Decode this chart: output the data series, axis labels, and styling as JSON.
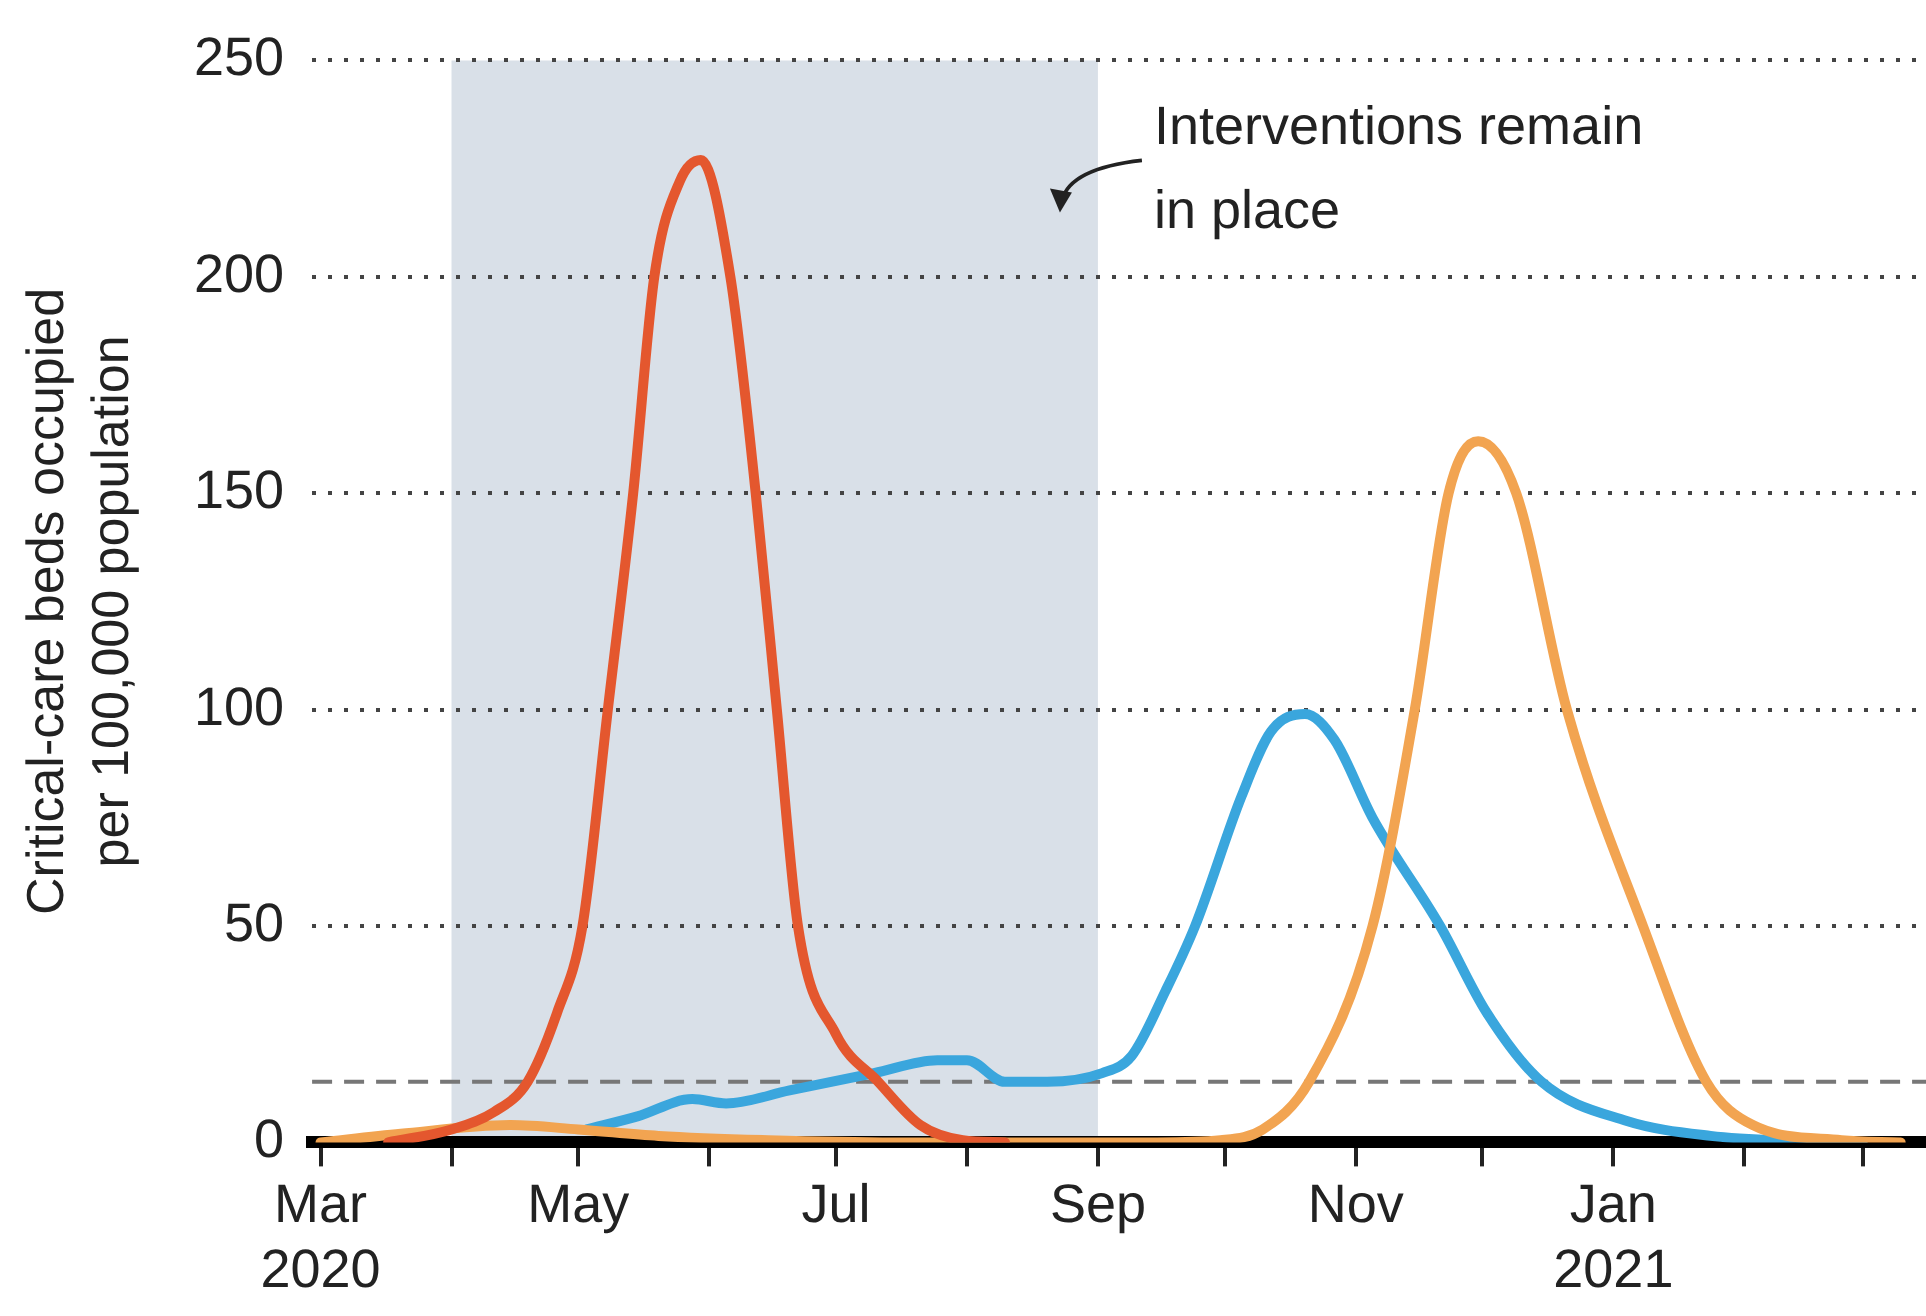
{
  "chart_data": {
    "type": "line",
    "ylabel": "Critical-care beds occupied\nper 100,000 population",
    "xlim": [
      "2020-02-28",
      "2021-03-16"
    ],
    "xticks": [
      {
        "value": "2020-03",
        "label": "Mar\n2020"
      },
      {
        "value": "2020-04",
        "label": null
      },
      {
        "value": "2020-05",
        "label": "May"
      },
      {
        "value": "2020-06",
        "label": null
      },
      {
        "value": "2020-07",
        "label": "Jul"
      },
      {
        "value": "2020-08",
        "label": null
      },
      {
        "value": "2020-09",
        "label": "Sep"
      },
      {
        "value": "2020-10",
        "label": null
      },
      {
        "value": "2020-11",
        "label": "Nov"
      },
      {
        "value": "2020-12",
        "label": null
      },
      {
        "value": "2021-01",
        "label": "Jan\n2021"
      },
      {
        "value": "2021-02",
        "label": null
      },
      {
        "value": "2021-03",
        "label": null
      }
    ],
    "ylim": [
      0,
      250
    ],
    "yticks": [
      0,
      50,
      100,
      150,
      200,
      250
    ],
    "grid": "y",
    "legend": false,
    "marker": "none",
    "line_style": "solid",
    "bands": [
      {
        "axis": "x",
        "from": "2020-04-01",
        "to": "2020-09-01",
        "label": "Interventions remain in place",
        "color": "#d9e0e8"
      }
    ],
    "ref_lines": [
      {
        "axis": "y",
        "value": 14,
        "color": "#777777",
        "line_style": "dashed"
      }
    ],
    "series": [
      {
        "color": "#e4572e",
        "x": [
          "2020-03-17",
          "2020-04-01",
          "2020-04-11",
          "2020-04-19",
          "2020-04-26",
          "2020-05-02",
          "2020-05-08",
          "2020-05-14",
          "2020-05-19",
          "2020-05-25",
          "2020-05-30",
          "2020-06-06",
          "2020-06-12",
          "2020-06-17",
          "2020-06-22",
          "2020-07-01",
          "2020-07-11",
          "2020-07-21",
          "2020-07-31",
          "2020-08-10"
        ],
        "values": [
          0,
          3,
          7,
          14,
          30,
          50,
          100,
          150,
          200,
          222,
          227,
          200,
          150,
          100,
          50,
          25,
          14,
          4,
          0.5,
          0
        ]
      },
      {
        "color": "#f2a451",
        "x": [
          "2020-03-01",
          "2020-03-20",
          "2020-04-15",
          "2020-05-01",
          "2020-05-20",
          "2020-06-15",
          "2020-07-15",
          "2020-09-15",
          "2020-09-30",
          "2020-10-10",
          "2020-10-21",
          "2020-11-05",
          "2020-11-15",
          "2020-11-23",
          "2020-11-30",
          "2020-12-09",
          "2020-12-21",
          "2021-01-08",
          "2021-01-23",
          "2021-02-03",
          "2021-02-24",
          "2021-03-10"
        ],
        "values": [
          0,
          2,
          4,
          3,
          1.5,
          0.5,
          0,
          0,
          0.5,
          3,
          14,
          50,
          100,
          150,
          162,
          150,
          100,
          50,
          14,
          4,
          0.5,
          0
        ]
      },
      {
        "color": "#3aa6dd",
        "x": [
          "2020-05-03",
          "2020-05-15",
          "2020-05-28",
          "2020-06-05",
          "2020-06-20",
          "2020-07-10",
          "2020-07-25",
          "2020-08-01",
          "2020-08-10",
          "2020-08-20",
          "2020-09-02",
          "2020-09-09",
          "2020-09-17",
          "2020-09-24",
          "2020-10-05",
          "2020-10-12",
          "2020-10-20",
          "2020-10-27",
          "2020-11-05",
          "2020-11-21",
          "2020-12-02",
          "2020-12-15",
          "2021-01-04",
          "2021-01-24",
          "2021-02-14",
          "2021-03-01"
        ],
        "values": [
          3,
          6,
          10,
          9,
          12,
          16,
          19,
          19,
          14,
          14,
          16,
          20,
          35,
          50,
          80,
          95,
          99,
          93,
          75,
          50,
          30,
          14,
          5,
          1.5,
          0.3,
          0
        ]
      }
    ]
  }
}
